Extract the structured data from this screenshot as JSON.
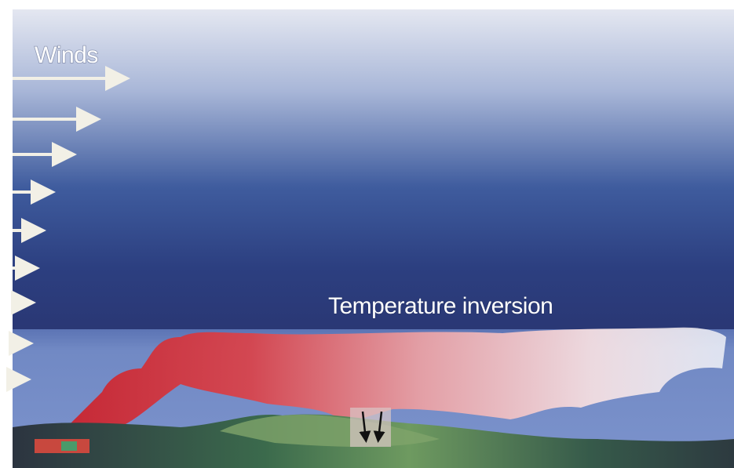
{
  "labels": {
    "winds": "Winds",
    "inversion": "Temperature inversion"
  }
}
